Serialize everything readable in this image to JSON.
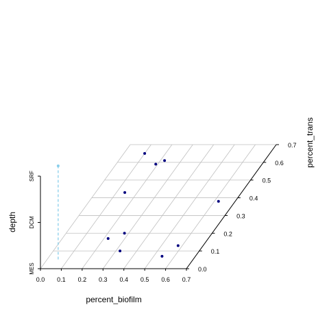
{
  "chart_data": {
    "type": "scatter3d",
    "x_label": "percent_biofilm",
    "y_label": "percent_trans",
    "z_label": "depth",
    "x_ticks": [
      "0.0",
      "0.1",
      "0.2",
      "0.3",
      "0.4",
      "0.5",
      "0.6",
      "0.7"
    ],
    "y_ticks": [
      "0.0",
      "0.1",
      "0.2",
      "0.3",
      "0.4",
      "0.5",
      "0.6",
      "0.7"
    ],
    "z_categories": [
      "MES",
      "DCM",
      "SRF"
    ],
    "xlim": [
      0,
      0.7
    ],
    "ylim": [
      0,
      0.7
    ],
    "grid": true,
    "point_color": "#00007f",
    "drop_line_color": "#87ceeb",
    "points": [
      {
        "x": 0.1,
        "y": 0.65,
        "z": "SRF"
      },
      {
        "x": 0.19,
        "y": 0.59,
        "z": "SRF"
      },
      {
        "x": 0.22,
        "y": 0.61,
        "z": "SRF"
      },
      {
        "x": 0.14,
        "y": 0.43,
        "z": "SRF"
      },
      {
        "x": 0.62,
        "y": 0.38,
        "z": "SRF"
      },
      {
        "x": 0.28,
        "y": 0.2,
        "z": "SRF"
      },
      {
        "x": 0.22,
        "y": 0.17,
        "z": "SRF"
      },
      {
        "x": 0.58,
        "y": 0.13,
        "z": "SRF"
      },
      {
        "x": 0.32,
        "y": 0.1,
        "z": "SRF"
      },
      {
        "x": 0.54,
        "y": 0.07,
        "z": "SRF"
      }
    ],
    "drop_line": {
      "x": 0.1,
      "y_from": 0.0,
      "y_to": 0.7
    }
  }
}
